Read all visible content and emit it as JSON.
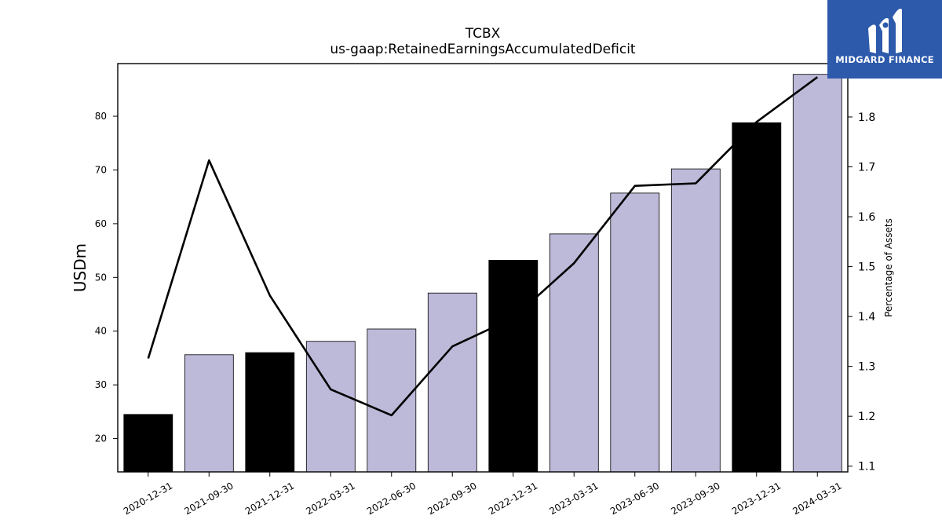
{
  "brand": {
    "name": "MIDGARD FINANCE",
    "bg_color": "#2d5aab"
  },
  "chart_data": {
    "type": "bar",
    "title": "TCBX",
    "subtitle": "us-gaap:RetainedEarningsAccumulatedDeficit",
    "ylabel": "USDm",
    "y2label": "Percentage of Assets",
    "categories": [
      "2020-12-31",
      "2021-09-30",
      "2021-12-31",
      "2022-03-31",
      "2022-06-30",
      "2022-09-30",
      "2022-12-31",
      "2023-03-31",
      "2023-06-30",
      "2023-09-30",
      "2023-12-31",
      "2024-03-31"
    ],
    "series": [
      {
        "type": "bar",
        "axis": "left",
        "values": [
          24.5,
          35.6,
          36.0,
          38.1,
          40.4,
          47.1,
          53.2,
          58.1,
          65.7,
          70.2,
          78.8,
          87.8
        ],
        "colors": [
          "#000000",
          "#bdb9d9",
          "#000000",
          "#bdb9d9",
          "#bdb9d9",
          "#bdb9d9",
          "#000000",
          "#bdb9d9",
          "#bdb9d9",
          "#bdb9d9",
          "#000000",
          "#bdb9d9"
        ]
      },
      {
        "type": "line",
        "axis": "right",
        "color": "#000000",
        "values": [
          1.316,
          1.713,
          1.442,
          1.254,
          1.202,
          1.34,
          1.397,
          1.507,
          1.662,
          1.667,
          1.79,
          1.88
        ]
      }
    ],
    "ylim": [
      13.8,
      89.8
    ],
    "y_ticks": [
      20,
      30,
      40,
      50,
      60,
      70,
      80
    ],
    "y2lim": [
      1.0885,
      1.907
    ],
    "y2_ticks": [
      1.1,
      1.2,
      1.3,
      1.4,
      1.5,
      1.6,
      1.7,
      1.8
    ],
    "grid": false,
    "legend": "none"
  }
}
